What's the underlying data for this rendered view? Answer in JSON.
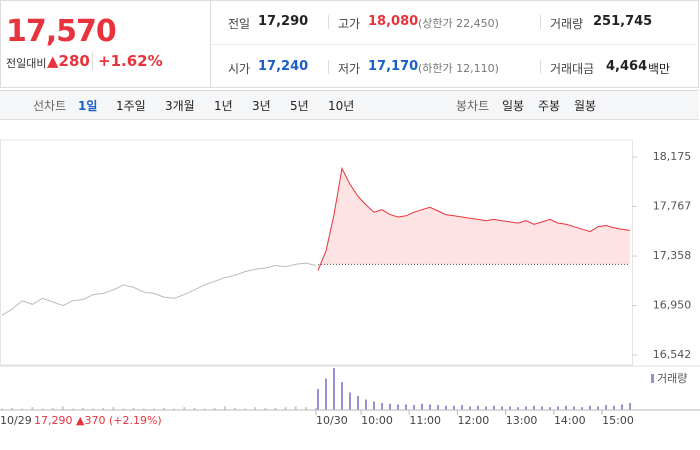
{
  "header": {
    "price": "17,570",
    "change_label": "전일대비",
    "change": "▲280",
    "change_pct": "+1.62%",
    "stats": [
      {
        "label": "전일",
        "value": "17,290"
      },
      {
        "label": "고가",
        "value": "18,080",
        "note": "(상한가 22,450)"
      },
      {
        "label": "거래량",
        "value": "251,745"
      },
      {
        "label": "시가",
        "value": "17,240"
      },
      {
        "label": "저가",
        "value": "17,170",
        "note": "(하한가 12,110)"
      },
      {
        "label": "거래대금",
        "value": "4,464",
        "unit": "백만"
      }
    ]
  },
  "tabs": {
    "line_label": "선차트",
    "line": [
      "1일",
      "1주일",
      "3개월",
      "1년",
      "3년",
      "5년",
      "10년"
    ],
    "candle_label": "봉차트",
    "candle": [
      "일봉",
      "주봉",
      "월봉"
    ]
  },
  "chart": {
    "ylim": [
      16460,
      18315
    ],
    "yticks": [
      {
        "value": 18175,
        "label": "18,175"
      },
      {
        "value": 17767,
        "label": "17,767"
      },
      {
        "value": 17358,
        "label": "17,358"
      },
      {
        "value": 16950,
        "label": "16,950"
      },
      {
        "value": 16542,
        "label": "16,542"
      }
    ],
    "baseline": 17290,
    "previous_day": {
      "values": [
        16870,
        16920,
        16990,
        16960,
        17010,
        16980,
        16950,
        16990,
        17000,
        17040,
        17050,
        17080,
        17120,
        17100,
        17060,
        17050,
        17020,
        17010,
        17040,
        17080,
        17120,
        17150,
        17180,
        17200,
        17230,
        17250,
        17260,
        17280,
        17270,
        17290,
        17300,
        17280
      ],
      "color": "#bbbbbb"
    },
    "today": {
      "values": [
        17240,
        17400,
        17700,
        18080,
        17950,
        17850,
        17780,
        17720,
        17740,
        17700,
        17680,
        17690,
        17720,
        17740,
        17760,
        17730,
        17700,
        17690,
        17680,
        17670,
        17660,
        17650,
        17660,
        17650,
        17640,
        17630,
        17650,
        17620,
        17640,
        17660,
        17630,
        17620,
        17600,
        17580,
        17560,
        17600,
        17610,
        17590,
        17580,
        17570
      ],
      "color": "#e8333d",
      "fill": "#fde3e4"
    },
    "volume_label": "거래량",
    "volume_prev": [
      2,
      3,
      2,
      4,
      2,
      3,
      5,
      2,
      3,
      2,
      3,
      4,
      2,
      3,
      2,
      2,
      3,
      2,
      4,
      3,
      2,
      3,
      5,
      3,
      2,
      4,
      3,
      3,
      4,
      5,
      4,
      3
    ],
    "volume_today": [
      30,
      45,
      60,
      40,
      25,
      20,
      15,
      12,
      10,
      9,
      8,
      8,
      7,
      9,
      8,
      7,
      6,
      6,
      7,
      5,
      6,
      5,
      6,
      5,
      5,
      4,
      5,
      6,
      5,
      4,
      5,
      6,
      5,
      4,
      6,
      5,
      7,
      6,
      8,
      10
    ],
    "date_prev": "10/29",
    "prev_summary": "17,290 ▲370 (+2.19%)",
    "date_today": "10/30",
    "hours": [
      "10:00",
      "11:00",
      "12:00",
      "13:00",
      "14:00",
      "15:00"
    ]
  }
}
